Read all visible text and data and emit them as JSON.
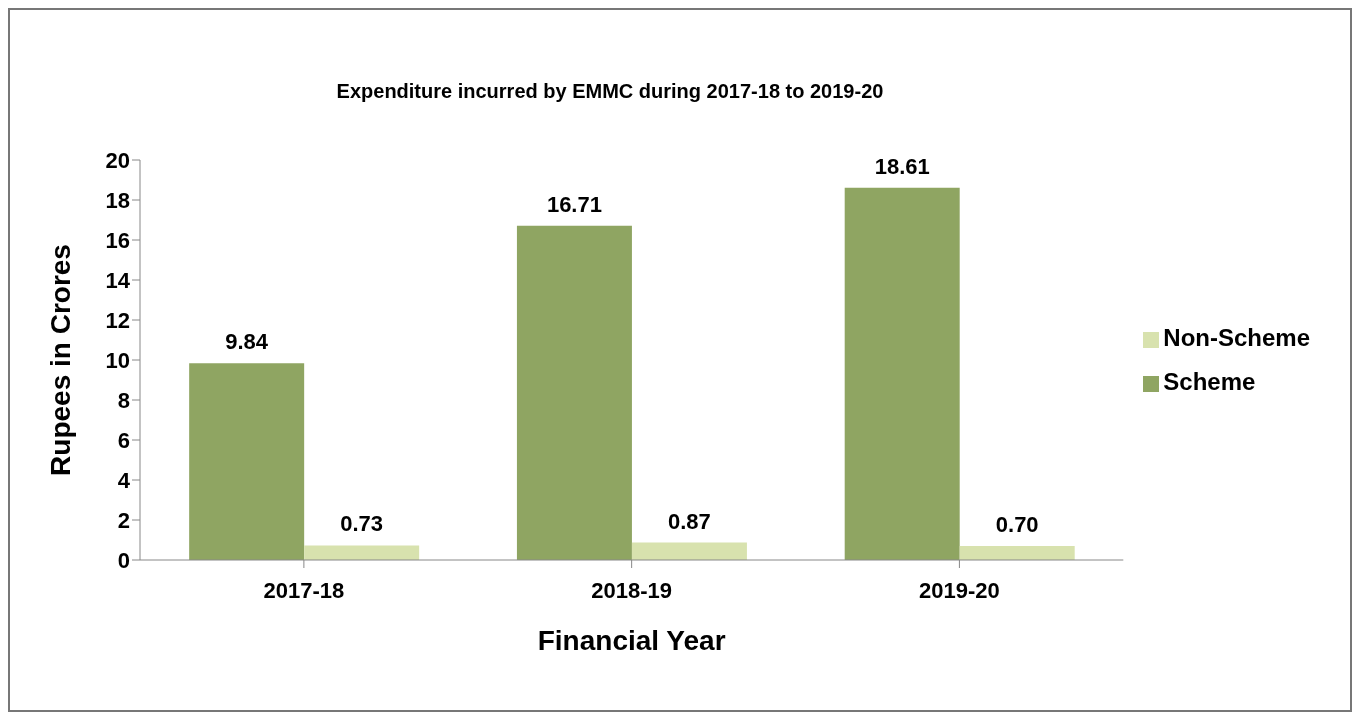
{
  "chart_data": {
    "type": "bar",
    "title": "Expenditure incurred by EMMC during 2017-18 to 2019-20",
    "xlabel": "Financial Year",
    "ylabel": "Rupees in Crores",
    "categories": [
      "2017-18",
      "2018-19",
      "2019-20"
    ],
    "series": [
      {
        "name": "Scheme",
        "color": "#8fa562",
        "values": [
          9.84,
          16.71,
          18.61
        ],
        "value_labels": [
          "9.84",
          "16.71",
          "18.61"
        ]
      },
      {
        "name": "Non-Scheme",
        "color": "#d8e2ae",
        "values": [
          0.73,
          0.87,
          0.7
        ],
        "value_labels": [
          "0.73",
          "0.87",
          "0.70"
        ]
      }
    ],
    "ylim": [
      0,
      20
    ],
    "yticks": [
      0,
      2,
      4,
      6,
      8,
      10,
      12,
      14,
      16,
      18,
      20
    ],
    "grid": false,
    "legend": "right"
  }
}
